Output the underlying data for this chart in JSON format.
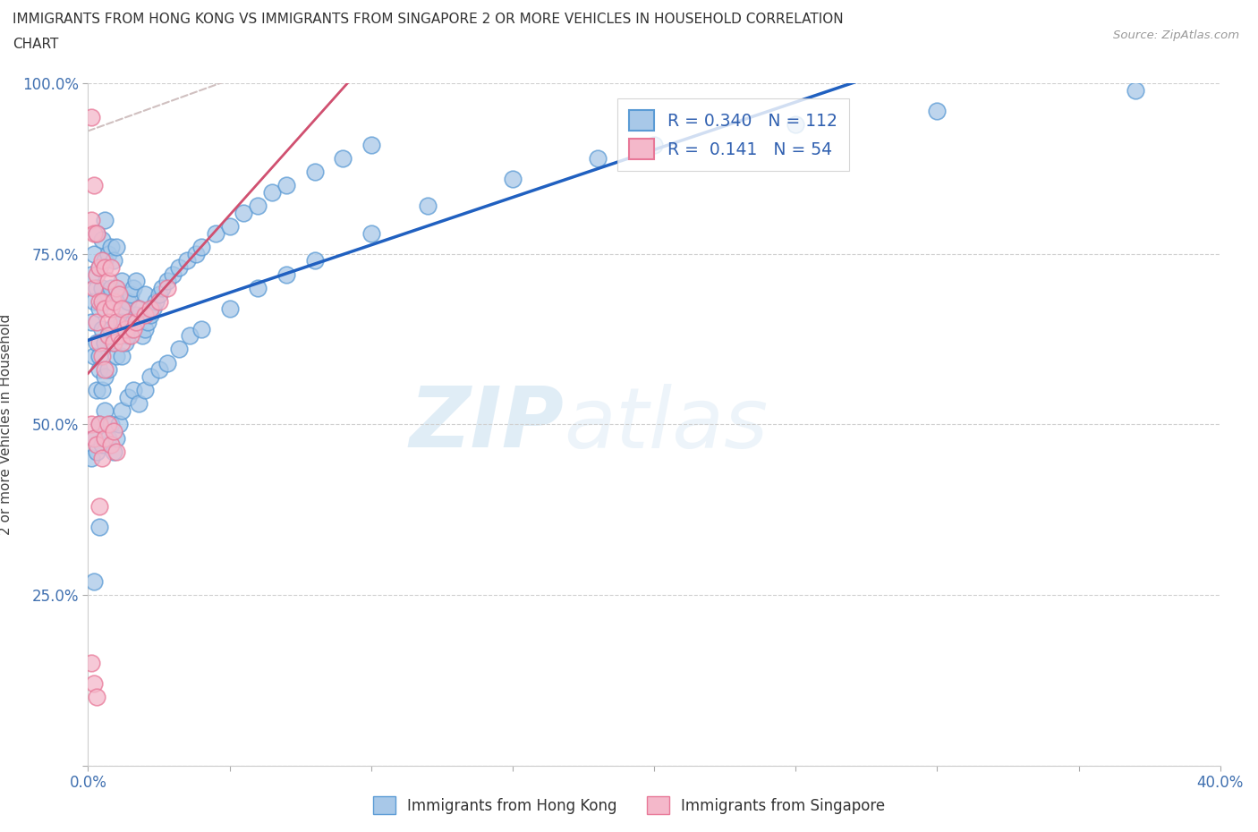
{
  "title_line1": "IMMIGRANTS FROM HONG KONG VS IMMIGRANTS FROM SINGAPORE 2 OR MORE VEHICLES IN HOUSEHOLD CORRELATION",
  "title_line2": "CHART",
  "source_text": "Source: ZipAtlas.com",
  "ylabel": "2 or more Vehicles in Household",
  "xlim": [
    0.0,
    0.4
  ],
  "ylim": [
    0.0,
    1.0
  ],
  "hk_color": "#a8c8e8",
  "hk_edge_color": "#5b9bd5",
  "sg_color": "#f4b8ca",
  "sg_edge_color": "#e87898",
  "trend_hk_color": "#2060c0",
  "trend_sg_color": "#d05070",
  "diag_color": "#d0c0c0",
  "R_hk": 0.34,
  "N_hk": 112,
  "R_sg": 0.141,
  "N_sg": 54,
  "watermark_zip": "ZIP",
  "watermark_atlas": "atlas",
  "legend_label_hk": "Immigrants from Hong Kong",
  "legend_label_sg": "Immigrants from Singapore",
  "hk_x": [
    0.001,
    0.001,
    0.002,
    0.002,
    0.002,
    0.003,
    0.003,
    0.003,
    0.003,
    0.004,
    0.004,
    0.004,
    0.004,
    0.005,
    0.005,
    0.005,
    0.005,
    0.006,
    0.006,
    0.006,
    0.006,
    0.006,
    0.007,
    0.007,
    0.007,
    0.007,
    0.008,
    0.008,
    0.008,
    0.009,
    0.009,
    0.009,
    0.01,
    0.01,
    0.01,
    0.01,
    0.011,
    0.011,
    0.012,
    0.012,
    0.012,
    0.013,
    0.013,
    0.014,
    0.014,
    0.015,
    0.015,
    0.016,
    0.016,
    0.017,
    0.017,
    0.018,
    0.019,
    0.02,
    0.02,
    0.021,
    0.022,
    0.023,
    0.024,
    0.025,
    0.026,
    0.028,
    0.03,
    0.032,
    0.035,
    0.038,
    0.04,
    0.045,
    0.05,
    0.055,
    0.06,
    0.065,
    0.07,
    0.08,
    0.09,
    0.1,
    0.001,
    0.002,
    0.003,
    0.004,
    0.005,
    0.006,
    0.007,
    0.008,
    0.009,
    0.01,
    0.011,
    0.012,
    0.014,
    0.016,
    0.018,
    0.02,
    0.022,
    0.025,
    0.028,
    0.032,
    0.036,
    0.04,
    0.05,
    0.06,
    0.07,
    0.08,
    0.1,
    0.12,
    0.15,
    0.18,
    0.2,
    0.25,
    0.3,
    0.37,
    0.002,
    0.004
  ],
  "hk_y": [
    0.65,
    0.72,
    0.6,
    0.68,
    0.75,
    0.62,
    0.7,
    0.55,
    0.78,
    0.6,
    0.67,
    0.73,
    0.58,
    0.64,
    0.7,
    0.55,
    0.77,
    0.62,
    0.68,
    0.74,
    0.57,
    0.8,
    0.63,
    0.69,
    0.75,
    0.58,
    0.64,
    0.7,
    0.76,
    0.62,
    0.68,
    0.74,
    0.6,
    0.65,
    0.7,
    0.76,
    0.63,
    0.69,
    0.6,
    0.65,
    0.71,
    0.62,
    0.67,
    0.63,
    0.68,
    0.64,
    0.69,
    0.65,
    0.7,
    0.66,
    0.71,
    0.67,
    0.63,
    0.64,
    0.69,
    0.65,
    0.66,
    0.67,
    0.68,
    0.69,
    0.7,
    0.71,
    0.72,
    0.73,
    0.74,
    0.75,
    0.76,
    0.78,
    0.79,
    0.81,
    0.82,
    0.84,
    0.85,
    0.87,
    0.89,
    0.91,
    0.45,
    0.48,
    0.46,
    0.5,
    0.47,
    0.52,
    0.48,
    0.5,
    0.46,
    0.48,
    0.5,
    0.52,
    0.54,
    0.55,
    0.53,
    0.55,
    0.57,
    0.58,
    0.59,
    0.61,
    0.63,
    0.64,
    0.67,
    0.7,
    0.72,
    0.74,
    0.78,
    0.82,
    0.86,
    0.89,
    0.91,
    0.94,
    0.96,
    0.99,
    0.27,
    0.35
  ],
  "sg_x": [
    0.001,
    0.001,
    0.002,
    0.002,
    0.002,
    0.003,
    0.003,
    0.003,
    0.004,
    0.004,
    0.004,
    0.005,
    0.005,
    0.005,
    0.006,
    0.006,
    0.006,
    0.007,
    0.007,
    0.007,
    0.008,
    0.008,
    0.009,
    0.009,
    0.01,
    0.01,
    0.011,
    0.011,
    0.012,
    0.012,
    0.013,
    0.014,
    0.015,
    0.016,
    0.017,
    0.018,
    0.02,
    0.022,
    0.025,
    0.028,
    0.001,
    0.002,
    0.003,
    0.004,
    0.005,
    0.006,
    0.007,
    0.008,
    0.009,
    0.01,
    0.001,
    0.002,
    0.003,
    0.004
  ],
  "sg_y": [
    0.95,
    0.8,
    0.78,
    0.7,
    0.85,
    0.72,
    0.65,
    0.78,
    0.68,
    0.73,
    0.62,
    0.68,
    0.74,
    0.6,
    0.67,
    0.73,
    0.58,
    0.65,
    0.71,
    0.63,
    0.67,
    0.73,
    0.62,
    0.68,
    0.65,
    0.7,
    0.63,
    0.69,
    0.62,
    0.67,
    0.64,
    0.65,
    0.63,
    0.64,
    0.65,
    0.67,
    0.66,
    0.67,
    0.68,
    0.7,
    0.5,
    0.48,
    0.47,
    0.5,
    0.45,
    0.48,
    0.5,
    0.47,
    0.49,
    0.46,
    0.15,
    0.12,
    0.1,
    0.38
  ]
}
